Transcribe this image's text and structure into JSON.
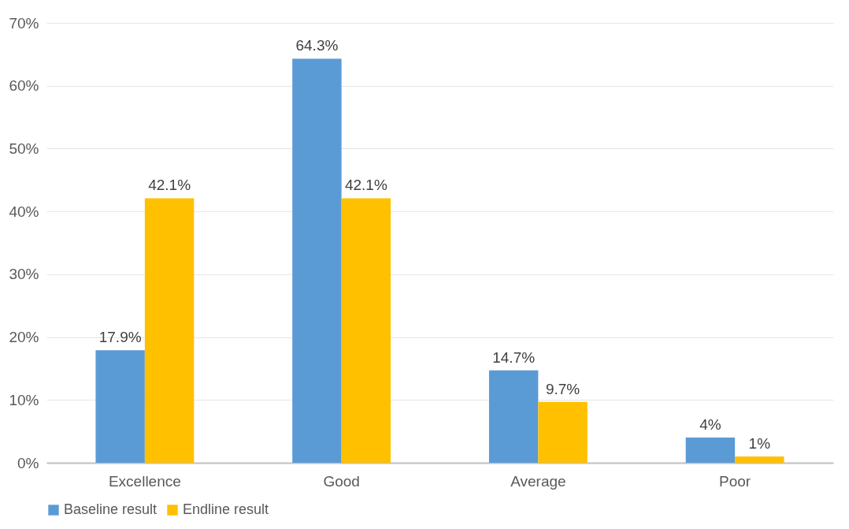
{
  "chart_data": {
    "type": "bar",
    "categories": [
      "Excellence",
      "Good",
      "Average",
      "Poor"
    ],
    "series": [
      {
        "name": "Baseline result",
        "color": "#5b9bd5",
        "values": [
          17.9,
          64.3,
          14.7,
          4
        ],
        "value_labels": [
          "17.9%",
          "64.3%",
          "14.7%",
          "4%"
        ]
      },
      {
        "name": "Endline result",
        "color": "#ffc000",
        "values": [
          42.1,
          42.1,
          9.7,
          1
        ],
        "value_labels": [
          "42.1%",
          "42.1%",
          "9.7%",
          "1%"
        ]
      }
    ],
    "ylim": [
      0,
      70
    ],
    "yticks": [
      {
        "value": 0,
        "label": "0%"
      },
      {
        "value": 10,
        "label": "10%"
      },
      {
        "value": 20,
        "label": "20%"
      },
      {
        "value": 30,
        "label": "30%"
      },
      {
        "value": 40,
        "label": "40%"
      },
      {
        "value": 50,
        "label": "50%"
      },
      {
        "value": 60,
        "label": "60%"
      },
      {
        "value": 70,
        "label": "70%"
      }
    ],
    "grid": "y",
    "legend": "bottom"
  }
}
